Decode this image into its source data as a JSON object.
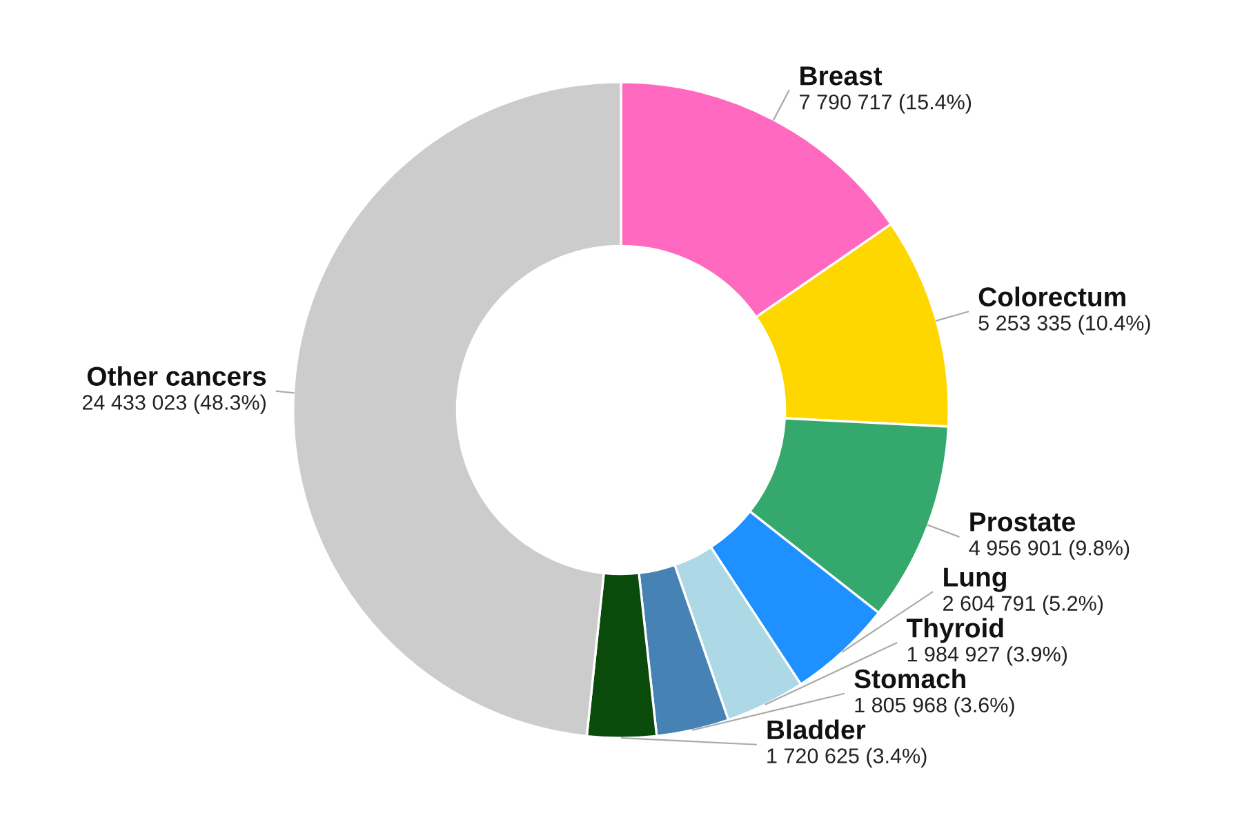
{
  "chart_data": {
    "type": "donut",
    "categories": [
      "Breast",
      "Colorectum",
      "Prostate",
      "Lung",
      "Thyroid",
      "Stomach",
      "Bladder",
      "Other cancers"
    ],
    "values": [
      7790717,
      5253335,
      4956901,
      2604791,
      1984927,
      1805968,
      1720625,
      24433023
    ],
    "colors": [
      "#ff69c0",
      "#ffd700",
      "#35a86e",
      "#1e90ff",
      "#add8e6",
      "#4682b4",
      "#0a4a0a",
      "#cccccc"
    ],
    "value_labels": [
      "7 790 717 (15.4%)",
      "5 253 335 (10.4%)",
      "4 956 901 (9.8%)",
      "2 604 791 (5.2%)",
      "1 984 927 (3.9%)",
      "1 805 968 (3.6%)",
      "1 720 625 (3.4%)",
      "24 433 023 (48.3%)"
    ]
  }
}
